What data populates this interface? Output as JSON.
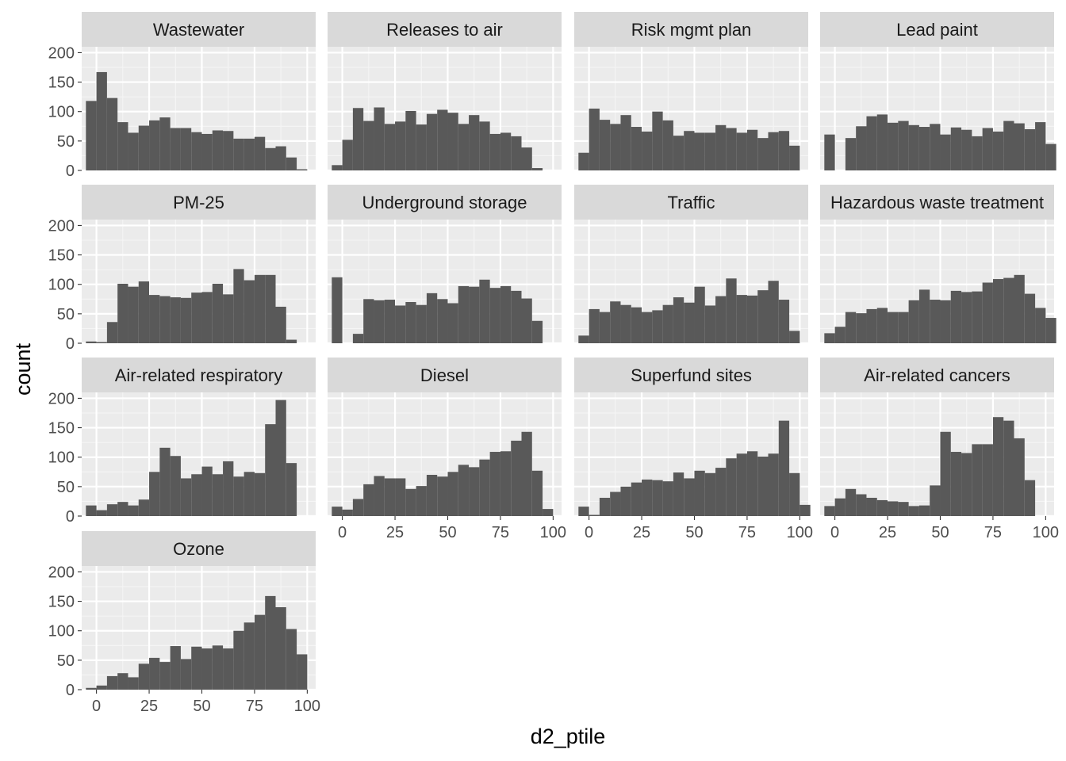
{
  "chart_data": {
    "type": "bar",
    "subtype": "faceted-histogram",
    "xlabel": "d2_ptile",
    "ylabel": "count",
    "bin_width": 5,
    "bin_centers": [
      -2.5,
      2.5,
      7.5,
      12.5,
      17.5,
      22.5,
      27.5,
      32.5,
      37.5,
      42.5,
      47.5,
      52.5,
      57.5,
      62.5,
      67.5,
      72.5,
      77.5,
      82.5,
      87.5,
      92.5,
      97.5,
      102.5
    ],
    "xlim": [
      -7,
      104
    ],
    "ylim": [
      0,
      210
    ],
    "x_ticks": [
      0,
      25,
      50,
      75,
      100
    ],
    "y_ticks": [
      0,
      50,
      100,
      150,
      200
    ],
    "ncol": 4,
    "facets": [
      {
        "name": "Wastewater",
        "values": [
          118,
          167,
          123,
          82,
          64,
          76,
          85,
          90,
          72,
          72,
          65,
          62,
          68,
          67,
          54,
          54,
          57,
          38,
          41,
          22,
          2,
          0
        ]
      },
      {
        "name": "Releases to air",
        "values": [
          9,
          52,
          106,
          84,
          107,
          79,
          83,
          101,
          78,
          96,
          103,
          98,
          79,
          94,
          83,
          62,
          64,
          58,
          39,
          4,
          0,
          0
        ]
      },
      {
        "name": "Risk mgmt plan",
        "values": [
          30,
          105,
          86,
          79,
          94,
          74,
          66,
          100,
          85,
          59,
          67,
          64,
          64,
          77,
          72,
          64,
          69,
          55,
          65,
          67,
          42,
          0
        ]
      },
      {
        "name": "Lead paint",
        "values": [
          61,
          0,
          55,
          75,
          92,
          95,
          81,
          84,
          77,
          74,
          79,
          61,
          73,
          69,
          58,
          72,
          66,
          84,
          80,
          70,
          82,
          45
        ]
      },
      {
        "name": "PM-25",
        "values": [
          3,
          2,
          36,
          101,
          96,
          105,
          82,
          80,
          78,
          77,
          86,
          87,
          101,
          83,
          126,
          107,
          116,
          116,
          62,
          6,
          0,
          0
        ]
      },
      {
        "name": "Underground storage",
        "values": [
          112,
          0,
          16,
          75,
          73,
          74,
          64,
          70,
          65,
          85,
          75,
          68,
          97,
          96,
          108,
          94,
          97,
          89,
          76,
          38,
          0,
          0
        ]
      },
      {
        "name": "Traffic",
        "values": [
          13,
          58,
          53,
          71,
          65,
          61,
          53,
          56,
          65,
          78,
          69,
          96,
          64,
          80,
          110,
          82,
          81,
          90,
          106,
          74,
          21,
          0
        ]
      },
      {
        "name": "Hazardous waste treatment",
        "values": [
          17,
          28,
          53,
          51,
          58,
          60,
          53,
          53,
          73,
          91,
          74,
          73,
          89,
          87,
          88,
          103,
          109,
          111,
          116,
          84,
          60,
          43
        ]
      },
      {
        "name": "Air-related respiratory",
        "values": [
          18,
          10,
          20,
          24,
          18,
          28,
          75,
          116,
          102,
          64,
          71,
          84,
          71,
          93,
          67,
          75,
          73,
          156,
          197,
          90,
          0,
          0
        ]
      },
      {
        "name": "Diesel",
        "values": [
          16,
          11,
          29,
          54,
          68,
          64,
          64,
          46,
          51,
          70,
          67,
          75,
          87,
          83,
          96,
          109,
          110,
          128,
          143,
          77,
          12,
          0
        ]
      },
      {
        "name": "Superfund sites",
        "values": [
          16,
          2,
          31,
          41,
          50,
          57,
          62,
          61,
          59,
          74,
          64,
          77,
          73,
          82,
          98,
          106,
          110,
          101,
          106,
          162,
          73,
          19
        ]
      },
      {
        "name": "Air-related cancers",
        "values": [
          17,
          30,
          46,
          37,
          31,
          27,
          25,
          24,
          17,
          18,
          52,
          143,
          109,
          107,
          122,
          122,
          168,
          162,
          132,
          61,
          0,
          0
        ]
      },
      {
        "name": "Ozone",
        "values": [
          3,
          7,
          23,
          28,
          21,
          44,
          54,
          47,
          74,
          52,
          73,
          70,
          75,
          70,
          100,
          114,
          127,
          159,
          140,
          103,
          60,
          0
        ]
      }
    ]
  }
}
